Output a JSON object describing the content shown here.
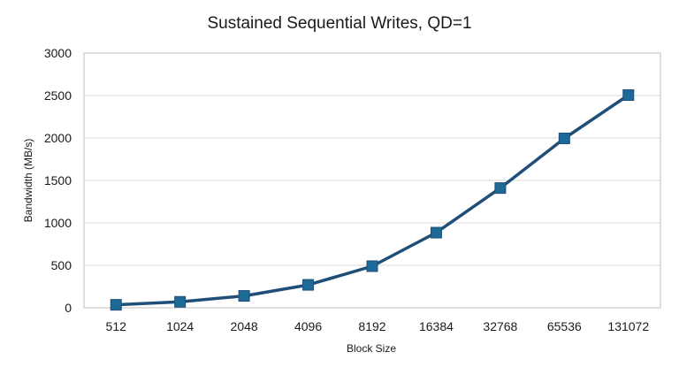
{
  "chart_data": {
    "type": "line",
    "title": "Sustained Sequential Writes, QD=1",
    "xlabel": "Block Size",
    "ylabel": "Bandwidth (MB/s)",
    "categories": [
      "512",
      "1024",
      "2048",
      "4096",
      "8192",
      "16384",
      "32768",
      "65536",
      "131072"
    ],
    "series": [
      {
        "values": [
          35,
          70,
          140,
          270,
          490,
          885,
          1410,
          1995,
          2505
        ]
      }
    ],
    "ylim": [
      0,
      3000
    ],
    "yticks": [
      "0",
      "500",
      "1000",
      "1500",
      "2000",
      "2500",
      "3000"
    ],
    "grid": true,
    "legend": "none",
    "colors": {
      "line": "#1f4e79",
      "marker": "#1d6a96",
      "grid": "#d9d9d9",
      "frame": "#bfbfbf"
    }
  }
}
